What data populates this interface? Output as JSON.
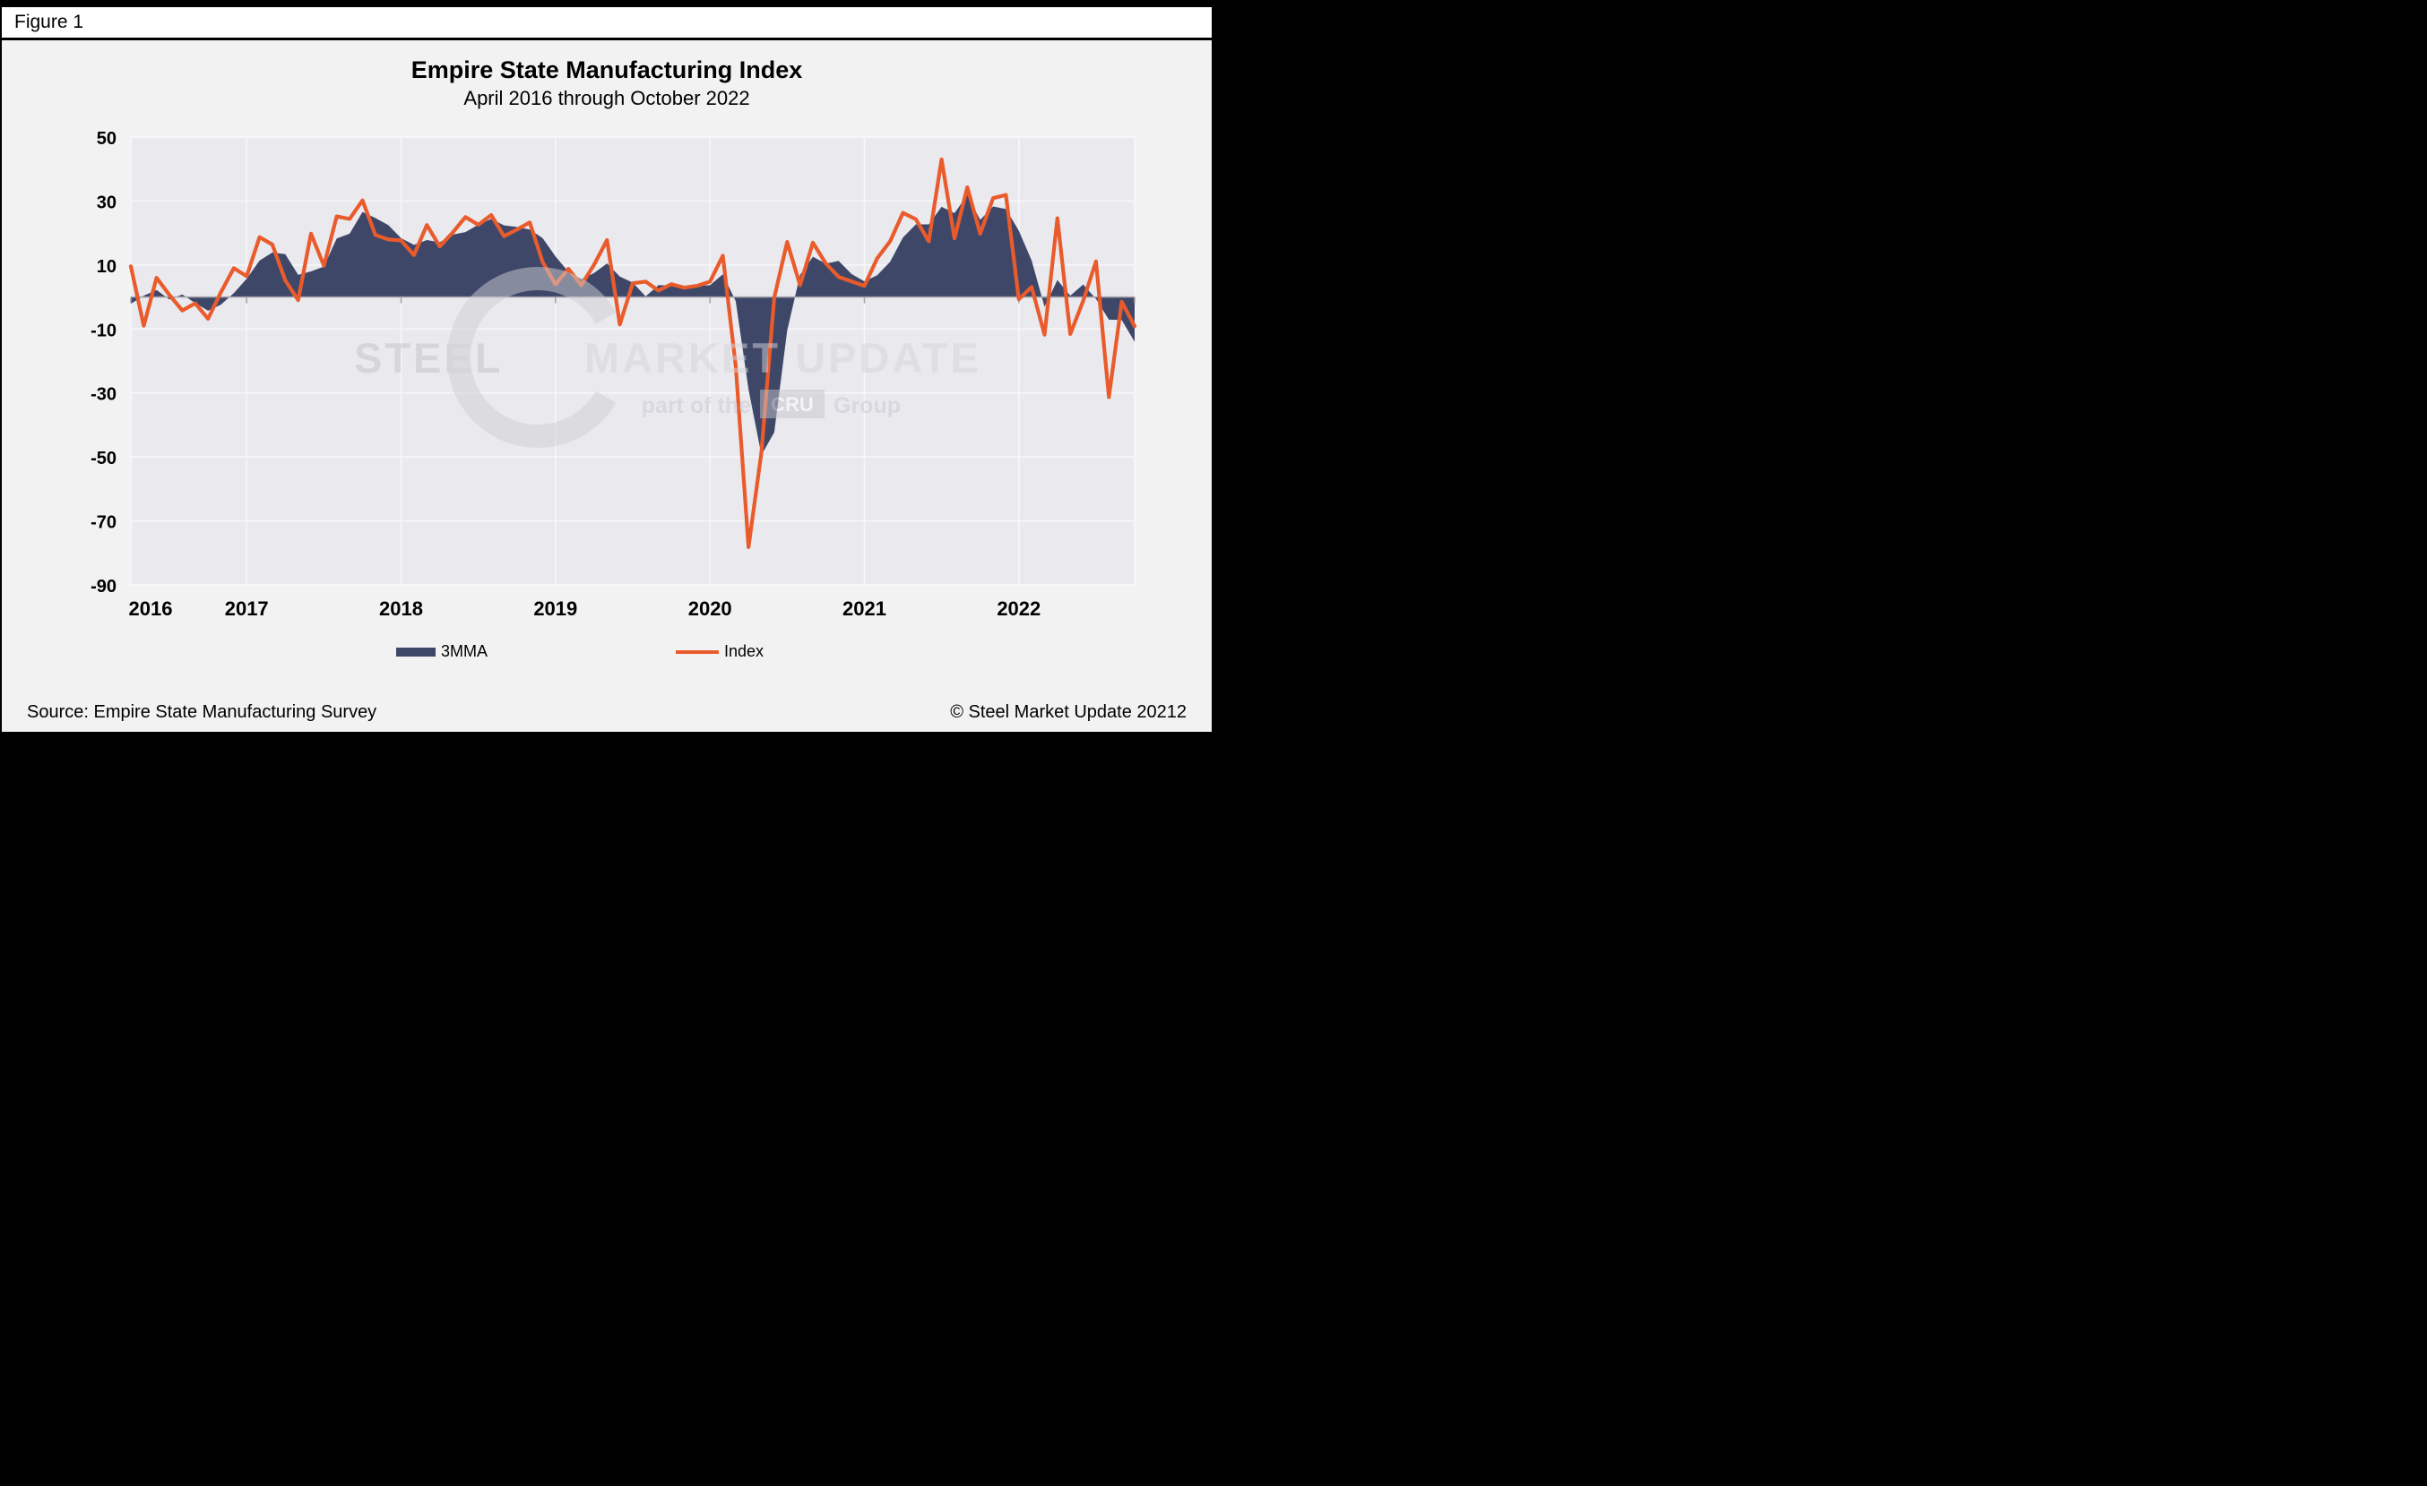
{
  "figure_label": "Figure 1",
  "header": {
    "title": "Empire State Manufacturing Index",
    "subtitle": "April 2016 through October 2022"
  },
  "legend": {
    "series_3mma": "3MMA",
    "series_index": "Index"
  },
  "footer": {
    "source": "Source: Empire State Manufacturing Survey",
    "copyright": "© Steel Market Update 20212"
  },
  "watermark": {
    "line1_strong": "STEEL",
    "line1_rest": "MARKET UPDATE",
    "line2_prefix": "part of the",
    "line2_box": "CRU",
    "line2_suffix": "Group"
  },
  "colors": {
    "area": "#3f4769",
    "line": "#ea5b2c",
    "plot_bg": "#e9e9ee",
    "page_bg": "#f2f2f2",
    "grid": "#f8f8fa",
    "zero_line": "#a3a3a8"
  },
  "chart_data": {
    "type": "line",
    "title": "Empire State Manufacturing Index",
    "subtitle": "April 2016 through October 2022",
    "xlabel": "",
    "ylabel": "",
    "ylim": [
      -90,
      50
    ],
    "yticks": [
      50,
      30,
      10,
      -10,
      -30,
      -50,
      -70,
      -90
    ],
    "xtick_labels": [
      "2016",
      "2017",
      "2018",
      "2019",
      "2020",
      "2021",
      "2022"
    ],
    "grid": true,
    "legend_position": "bottom",
    "x": [
      "2016-04",
      "2016-05",
      "2016-06",
      "2016-07",
      "2016-08",
      "2016-09",
      "2016-10",
      "2016-11",
      "2016-12",
      "2017-01",
      "2017-02",
      "2017-03",
      "2017-04",
      "2017-05",
      "2017-06",
      "2017-07",
      "2017-08",
      "2017-09",
      "2017-10",
      "2017-11",
      "2017-12",
      "2018-01",
      "2018-02",
      "2018-03",
      "2018-04",
      "2018-05",
      "2018-06",
      "2018-07",
      "2018-08",
      "2018-09",
      "2018-10",
      "2018-11",
      "2018-12",
      "2019-01",
      "2019-02",
      "2019-03",
      "2019-04",
      "2019-05",
      "2019-06",
      "2019-07",
      "2019-08",
      "2019-09",
      "2019-10",
      "2019-11",
      "2019-12",
      "2020-01",
      "2020-02",
      "2020-03",
      "2020-04",
      "2020-05",
      "2020-06",
      "2020-07",
      "2020-08",
      "2020-09",
      "2020-10",
      "2020-11",
      "2020-12",
      "2021-01",
      "2021-02",
      "2021-03",
      "2021-04",
      "2021-05",
      "2021-06",
      "2021-07",
      "2021-08",
      "2021-09",
      "2021-10",
      "2021-11",
      "2021-12",
      "2022-01",
      "2022-02",
      "2022-03",
      "2022-04",
      "2022-05",
      "2022-06",
      "2022-07",
      "2022-08",
      "2022-09",
      "2022-10"
    ],
    "series": [
      {
        "name": "3MMA",
        "type": "area",
        "color": "#3f4769",
        "values": [
          -2.1,
          0.4,
          2.2,
          -0.8,
          0.8,
          -1.9,
          -4.3,
          -2.4,
          1.2,
          5.7,
          11.4,
          13.9,
          13.4,
          6.9,
          8.0,
          9.5,
          18.3,
          19.8,
          26.6,
          24.7,
          22.5,
          18.4,
          16.3,
          17.8,
          17.1,
          19.5,
          20.3,
          22.6,
          24.4,
          22.4,
          21.9,
          21.1,
          18.4,
          12.7,
          7.9,
          5.5,
          7.5,
          10.5,
          6.4,
          4.5,
          0.2,
          3.7,
          3.6,
          3.0,
          3.5,
          3.7,
          7.1,
          -1.3,
          -28.9,
          -49.4,
          -42.3,
          -10.5,
          6.9,
          12.6,
          10.4,
          11.3,
          7.2,
          4.9,
          6.8,
          11.0,
          18.6,
          22.7,
          22.7,
          28.2,
          26.2,
          31.9,
          24.1,
          28.3,
          27.5,
          20.7,
          11.4,
          -3.1,
          5.3,
          0.4,
          3.9,
          -0.6,
          -7.1,
          -7.2,
          -14.0
        ]
      },
      {
        "name": "Index",
        "type": "line",
        "color": "#ea5b2c",
        "values": [
          9.6,
          -9.0,
          6.0,
          0.6,
          -4.2,
          -2.0,
          -6.8,
          1.5,
          9.0,
          6.5,
          18.7,
          16.4,
          5.2,
          -1.0,
          19.8,
          9.8,
          25.2,
          24.4,
          30.2,
          19.4,
          18.0,
          17.7,
          13.1,
          22.5,
          15.8,
          20.1,
          25.0,
          22.6,
          25.6,
          19.0,
          21.1,
          23.3,
          10.9,
          3.9,
          8.8,
          3.7,
          10.1,
          17.8,
          -8.6,
          4.3,
          4.8,
          2.0,
          4.0,
          2.9,
          3.5,
          4.8,
          12.9,
          -21.5,
          -78.2,
          -48.5,
          -0.2,
          17.2,
          3.7,
          17.0,
          10.5,
          6.3,
          4.9,
          3.5,
          12.1,
          17.4,
          26.3,
          24.3,
          17.4,
          43.0,
          18.3,
          34.3,
          19.8,
          30.9,
          31.9,
          -0.7,
          3.1,
          -11.8,
          24.6,
          -11.6,
          -1.2,
          11.1,
          -31.3,
          -1.5,
          -9.1
        ]
      }
    ]
  }
}
